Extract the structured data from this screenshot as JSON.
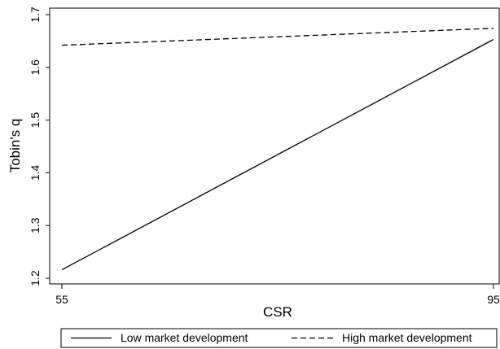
{
  "chart_data": {
    "type": "line",
    "title": "",
    "xlabel": "CSR",
    "ylabel": "Tobin's q",
    "xlim": [
      55,
      95
    ],
    "ylim": [
      1.2,
      1.7
    ],
    "x_ticks": [
      55,
      95
    ],
    "y_ticks": [
      1.2,
      1.3,
      1.4,
      1.5,
      1.6,
      1.7
    ],
    "grid": false,
    "legend_position": "bottom",
    "series": [
      {
        "name": "Low market development",
        "line_style": "solid",
        "color": "#000000",
        "x": [
          55,
          95
        ],
        "y": [
          1.216,
          1.653
        ]
      },
      {
        "name": "High market development",
        "line_style": "dashed",
        "color": "#000000",
        "x": [
          55,
          95
        ],
        "y": [
          1.642,
          1.674
        ]
      }
    ]
  }
}
